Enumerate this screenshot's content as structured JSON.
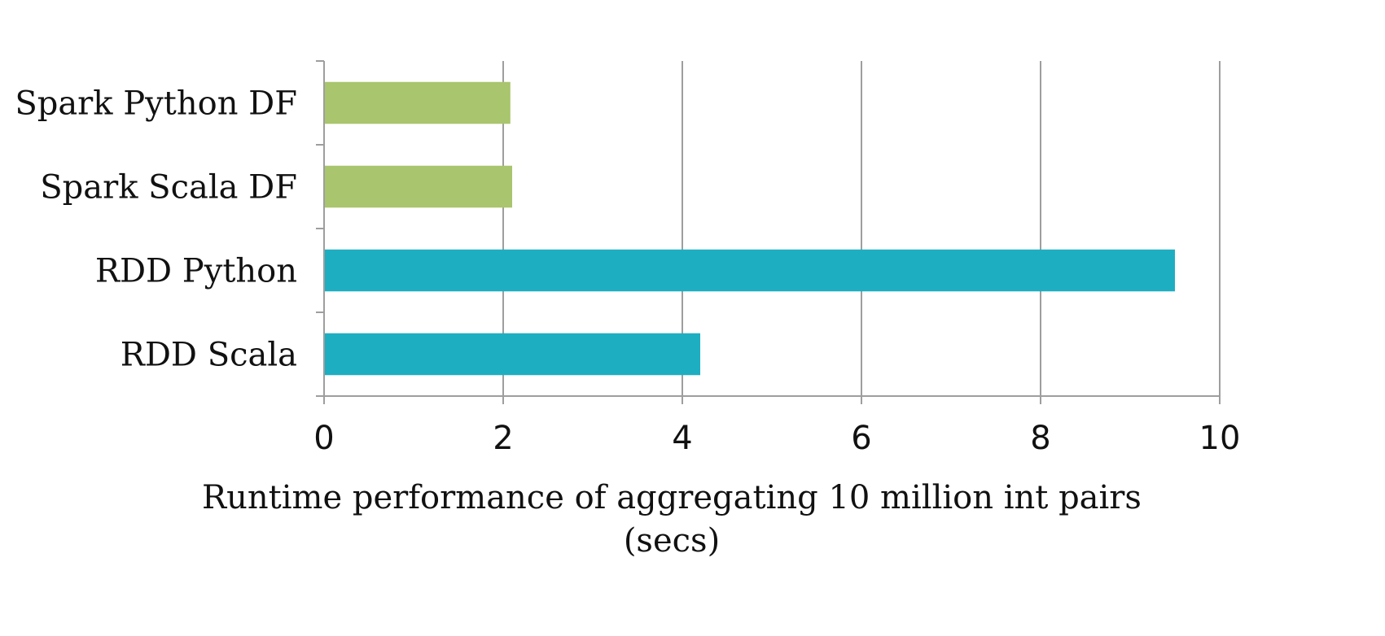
{
  "chart_data": {
    "type": "bar",
    "orientation": "horizontal",
    "categories": [
      "Spark Python DF",
      "Spark Scala DF",
      "RDD Python",
      "RDD Scala"
    ],
    "values": [
      2.08,
      2.1,
      9.5,
      4.2
    ],
    "bar_colors": [
      "#a9c56d",
      "#a9c56d",
      "#1eaec1",
      "#1eaec1"
    ],
    "xlim": [
      0,
      10
    ],
    "x_ticks": [
      "0",
      "2",
      "4",
      "6",
      "8",
      "10"
    ],
    "xlabel_line1": "Runtime performance of aggregating 10 million int pairs",
    "xlabel_line2": "(secs)",
    "ylabel": "",
    "grid": "vertical",
    "legend": "none"
  }
}
